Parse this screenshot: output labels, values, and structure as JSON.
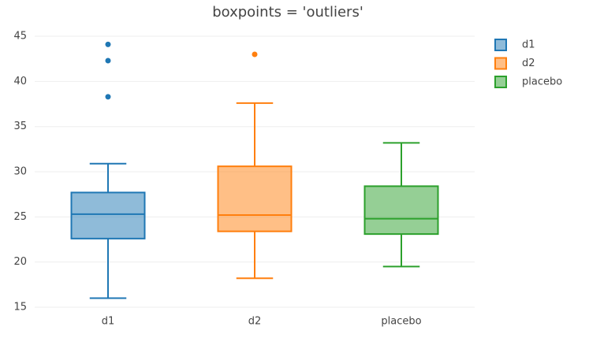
{
  "chart_data": {
    "type": "box",
    "title": "boxpoints = 'outliers'",
    "categories": [
      "d1",
      "d2",
      "placebo"
    ],
    "ylim": [
      15,
      46.4
    ],
    "yticks": [
      15,
      20,
      25,
      30,
      35,
      40,
      45
    ],
    "grid": true,
    "series": [
      {
        "name": "d1",
        "color": "#1f77b4",
        "lowerfence": 16.0,
        "q1": 22.6,
        "median": 25.3,
        "q3": 27.7,
        "upperfence": 30.9,
        "outliers": [
          44.1,
          42.3,
          38.3
        ]
      },
      {
        "name": "d2",
        "color": "#ff7f0e",
        "lowerfence": 18.2,
        "q1": 23.4,
        "median": 25.2,
        "q3": 30.6,
        "upperfence": 37.6,
        "outliers": [
          43.0
        ]
      },
      {
        "name": "placebo",
        "color": "#2ca02c",
        "lowerfence": 19.5,
        "q1": 23.1,
        "median": 24.8,
        "q3": 28.4,
        "upperfence": 33.2,
        "outliers": []
      }
    ]
  }
}
